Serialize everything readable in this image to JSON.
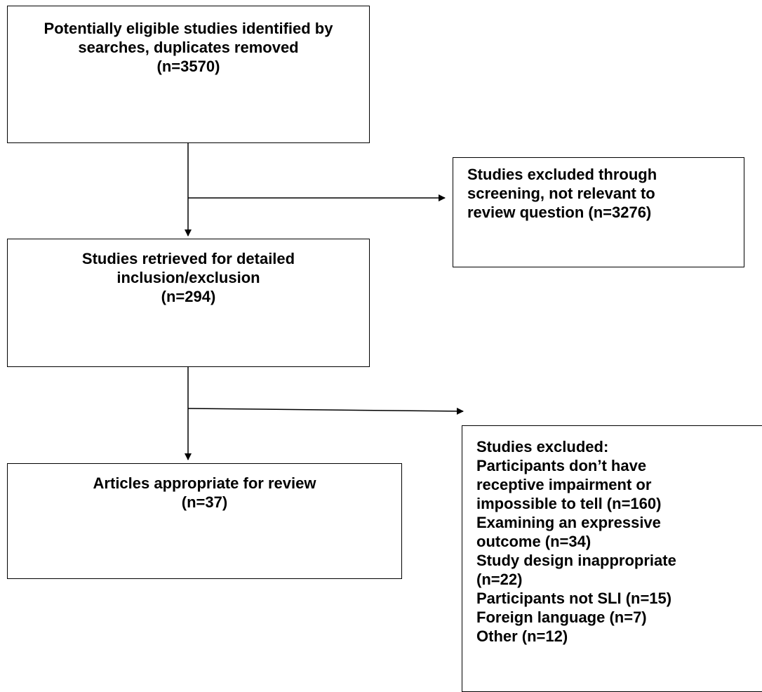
{
  "colors": {
    "stroke": "#000000",
    "background": "#ffffff"
  },
  "boxes": {
    "identified": {
      "lines": [
        "Potentially eligible studies identified by",
        "searches, duplicates removed",
        "(n=3570)"
      ]
    },
    "excluded_screening": {
      "lines": [
        "Studies excluded through",
        "screening, not relevant to",
        "review question (n=3276)"
      ]
    },
    "retrieved": {
      "lines": [
        "Studies retrieved for detailed",
        "inclusion/exclusion",
        "(n=294)"
      ]
    },
    "excluded_detailed": {
      "lines": [
        "Studies excluded:",
        "Participants don’t have",
        "receptive impairment or",
        "impossible to tell (n=160)",
        "Examining an expressive",
        "outcome (n=34)",
        "Study design inappropriate",
        "(n=22)",
        "Participants not SLI (n=15)",
        "Foreign language (n=7)",
        "Other (n=12)"
      ]
    },
    "appropriate": {
      "lines": [
        "Articles appropriate for review",
        "(n=37)"
      ]
    }
  }
}
